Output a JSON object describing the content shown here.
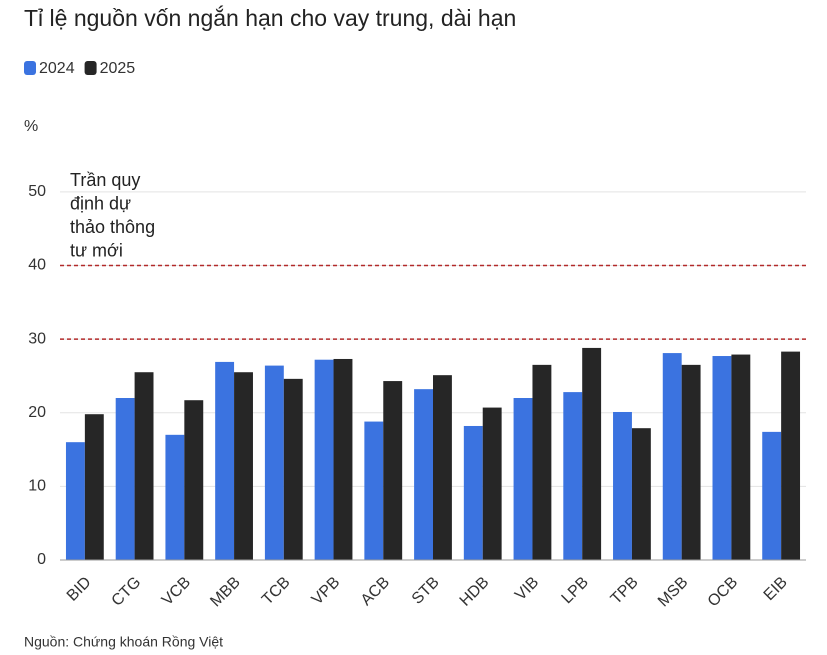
{
  "chart_data": {
    "type": "bar",
    "title": "Tỉ lệ nguồn vốn ngắn hạn cho vay trung, dài hạn",
    "y_label": "%",
    "source": "Nguồn: Chứng khoán Rồng Việt",
    "annotation": [
      "Trần quy",
      "định dự",
      "thảo thông",
      "tư mới"
    ],
    "reference_lines": [
      30,
      40
    ],
    "reference_color": "#b22a2a",
    "categories": [
      "BID",
      "CTG",
      "VCB",
      "MBB",
      "TCB",
      "VPB",
      "ACB",
      "STB",
      "HDB",
      "VIB",
      "LPB",
      "TPB",
      "MSB",
      "OCB",
      "EIB"
    ],
    "series": [
      {
        "name": "2024",
        "color": "#3b73e0",
        "values": [
          16.0,
          22.0,
          17.0,
          26.9,
          26.4,
          27.2,
          18.8,
          23.2,
          18.2,
          22.0,
          22.8,
          20.1,
          28.1,
          27.7,
          17.4
        ]
      },
      {
        "name": "2025",
        "color": "#262626",
        "values": [
          19.8,
          25.5,
          21.7,
          25.5,
          24.6,
          27.3,
          24.3,
          25.1,
          20.7,
          26.5,
          28.8,
          17.9,
          26.5,
          27.9,
          28.3
        ]
      }
    ],
    "ylim": [
      0,
      55
    ],
    "yticks": [
      0,
      10,
      20,
      30,
      40,
      50
    ],
    "grid": true
  }
}
